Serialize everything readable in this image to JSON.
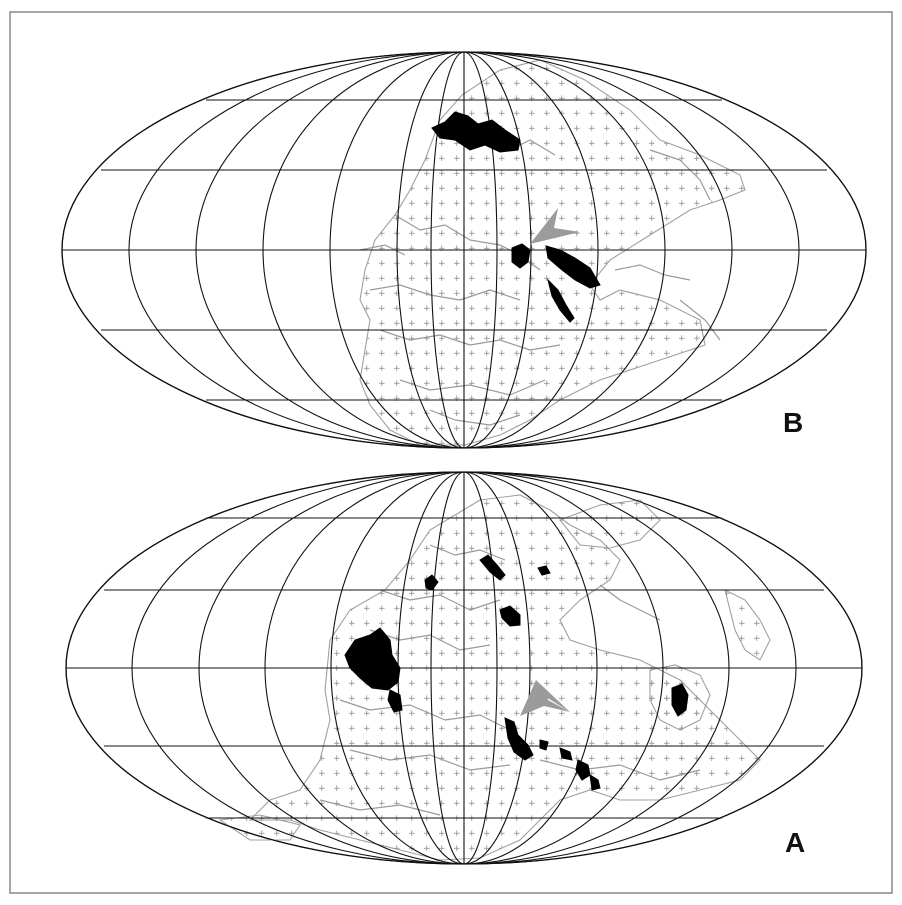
{
  "figure": {
    "panels": [
      {
        "id": "top",
        "label": "B"
      },
      {
        "id": "bottom",
        "label": "A"
      }
    ],
    "colors": {
      "grid": "#111111",
      "coastline": "#9a9a9a",
      "highlight_deposits": "#000000",
      "arrow": "#9b9b9b",
      "frame": "#888888"
    },
    "icons": [
      "gray-arrowhead-pointer-icon"
    ]
  }
}
